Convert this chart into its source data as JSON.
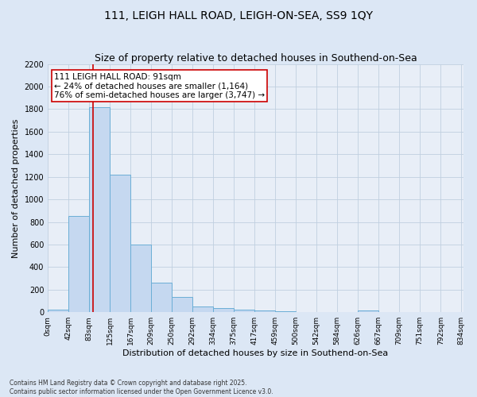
{
  "title": "111, LEIGH HALL ROAD, LEIGH-ON-SEA, SS9 1QY",
  "subtitle": "Size of property relative to detached houses in Southend-on-Sea",
  "xlabel": "Distribution of detached houses by size in Southend-on-Sea",
  "ylabel": "Number of detached properties",
  "bar_color": "#c5d8f0",
  "bar_edge_color": "#6baed6",
  "bar_left_edges": [
    0,
    41.5,
    83,
    124.5,
    166,
    207.5,
    249,
    290.5,
    332,
    373.5,
    415,
    456.5,
    498,
    539.5,
    581,
    622.5,
    664,
    705.5,
    747,
    788.5
  ],
  "bar_heights": [
    25,
    850,
    1820,
    1220,
    600,
    260,
    135,
    50,
    35,
    25,
    15,
    5,
    0,
    0,
    0,
    15,
    0,
    0,
    0,
    0
  ],
  "bin_width": 41.5,
  "subject_x": 91,
  "subject_line_color": "#cc0000",
  "annotation_text": "111 LEIGH HALL ROAD: 91sqm\n← 24% of detached houses are smaller (1,164)\n76% of semi-detached houses are larger (3,747) →",
  "annotation_box_color": "#ffffff",
  "annotation_box_edge_color": "#cc0000",
  "ylim": [
    0,
    2200
  ],
  "xlim": [
    0,
    834
  ],
  "tick_labels": [
    "0sqm",
    "42sqm",
    "83sqm",
    "125sqm",
    "167sqm",
    "209sqm",
    "250sqm",
    "292sqm",
    "334sqm",
    "375sqm",
    "417sqm",
    "459sqm",
    "500sqm",
    "542sqm",
    "584sqm",
    "626sqm",
    "667sqm",
    "709sqm",
    "751sqm",
    "792sqm",
    "834sqm"
  ],
  "tick_positions": [
    0,
    41.5,
    83,
    124.5,
    166,
    207.5,
    249,
    290.5,
    332,
    373.5,
    415,
    456.5,
    498,
    539.5,
    581,
    622.5,
    664,
    705.5,
    747,
    788.5,
    830
  ],
  "yticks": [
    0,
    200,
    400,
    600,
    800,
    1000,
    1200,
    1400,
    1600,
    1800,
    2000,
    2200
  ],
  "bg_color": "#dce7f5",
  "plot_bg_color": "#e8eef7",
  "grid_color": "#c0cfe0",
  "footnote": "Contains HM Land Registry data © Crown copyright and database right 2025.\nContains public sector information licensed under the Open Government Licence v3.0.",
  "title_fontsize": 10,
  "subtitle_fontsize": 9,
  "label_fontsize": 8,
  "tick_fontsize": 6.5,
  "annot_fontsize": 7.5,
  "footnote_fontsize": 5.5
}
